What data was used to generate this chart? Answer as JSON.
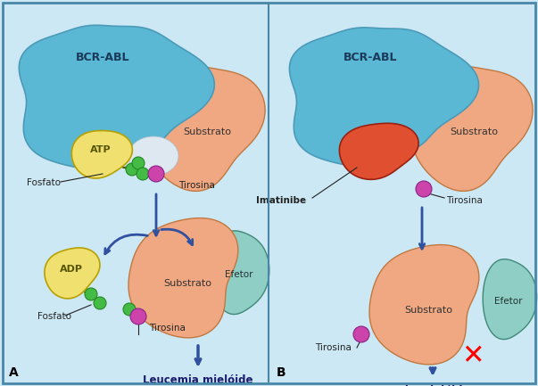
{
  "bg_color": "#cce8f4",
  "border_color": "#4a86a8",
  "bcr_abl_color": "#5bb8d4",
  "substrato_color": "#f0a882",
  "efetor_color": "#8ecec4",
  "atp_color": "#f0e070",
  "adp_color": "#f0e070",
  "imatinibe_color": "#e05030",
  "phosphate_color": "#44bb44",
  "tyrosine_color": "#cc44aa",
  "arrow_color": "#3050a0",
  "active_site_color": "#dde8f0",
  "label_leucemia": "Leucemia mielóide\ncrônica",
  "label_bcrabl": "BCR-ABL",
  "label_substrato": "Substrato",
  "label_efetor": "Efetor",
  "label_atp": "ATP",
  "label_adp": "ADP",
  "label_fosfato": "Fosfato",
  "label_tirosina": "Tirosina",
  "label_imatinibe": "Imatinibe",
  "label_A": "A",
  "label_B": "B"
}
